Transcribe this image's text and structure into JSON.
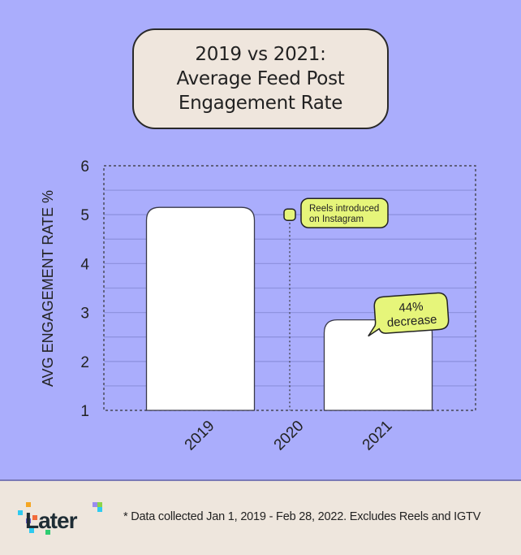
{
  "title": {
    "lines": [
      "2019 vs 2021:",
      "Average Feed Post",
      "Engagement Rate"
    ]
  },
  "chart_data": {
    "type": "bar",
    "title": "2019 vs 2021: Average Feed Post Engagement Rate",
    "xlabel": "",
    "ylabel": "AVG ENGAGEMENT RATE %",
    "categories": [
      "2019",
      "2020",
      "2021"
    ],
    "values": [
      5.15,
      null,
      2.85
    ],
    "ylim": [
      1,
      6
    ],
    "yticks": [
      "1",
      "2",
      "3",
      "4",
      "5",
      "6"
    ],
    "grid": true,
    "annotations": [
      {
        "category": "2020",
        "y": 5,
        "text": "Reels introduced on Instagram",
        "lines": [
          "Reels introduced",
          "on Instagram"
        ]
      },
      {
        "category": "2021",
        "text": "44% decrease",
        "lines": [
          "44%",
          "decrease"
        ]
      }
    ]
  },
  "colors": {
    "background": "#aaadfc",
    "bar": "#ffffff",
    "callout": "#e6f57a",
    "footer": "#eee6dd",
    "text": "#222222"
  },
  "footer": {
    "logo_text": "Later",
    "footnote": "* Data collected Jan 1, 2019 - Feb 28, 2022. Excludes Reels and IGTV"
  }
}
